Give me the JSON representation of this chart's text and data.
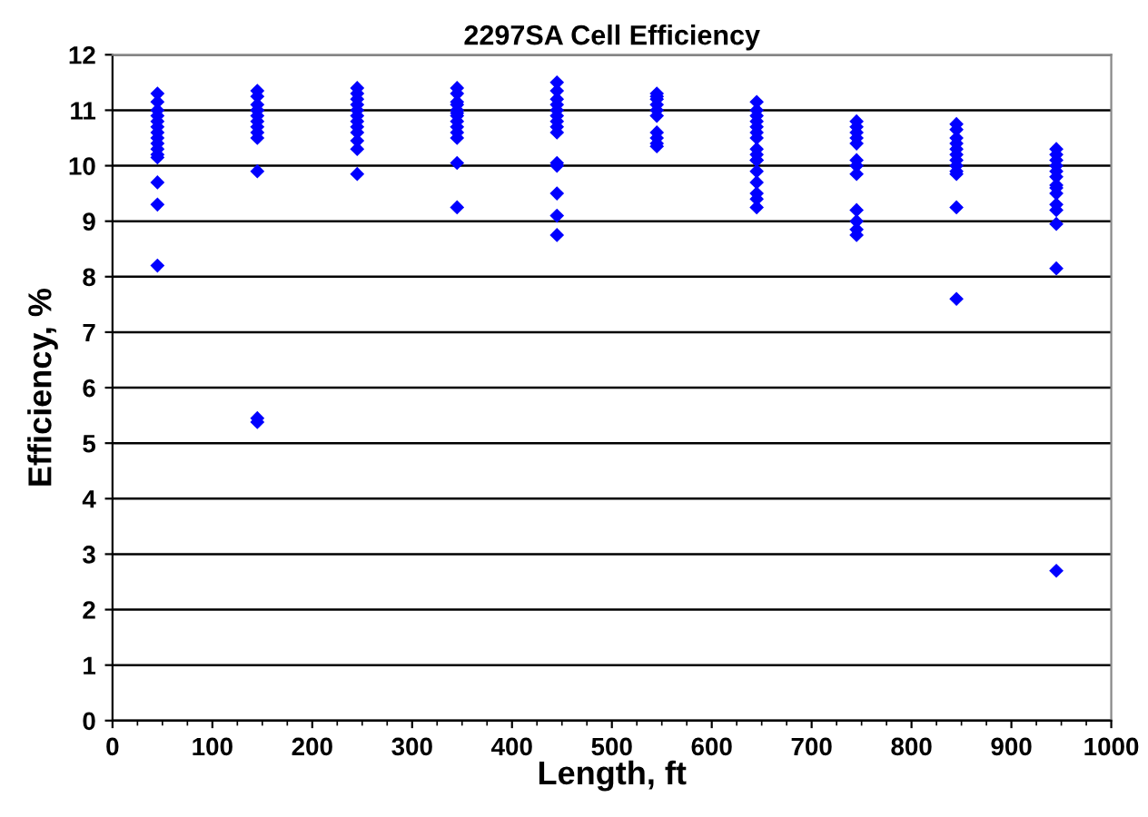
{
  "chart_data": {
    "type": "scatter",
    "title": "2297SA Cell Efficiency",
    "xlabel": "Length, ft",
    "ylabel": "Efficiency, %",
    "series": [
      {
        "color": "#0000ff",
        "x": [
          45,
          45,
          45,
          45,
          45,
          45,
          45,
          45,
          45,
          45,
          45,
          45,
          45,
          45,
          45,
          145,
          145,
          145,
          145,
          145,
          145,
          145,
          145,
          145,
          145,
          145,
          145,
          145,
          245,
          245,
          245,
          245,
          245,
          245,
          245,
          245,
          245,
          245,
          245,
          245,
          345,
          345,
          345,
          345,
          345,
          345,
          345,
          345,
          345,
          345,
          345,
          345,
          345,
          445,
          445,
          445,
          445,
          445,
          445,
          445,
          445,
          445,
          445,
          445,
          445,
          445,
          445,
          545,
          545,
          545,
          545,
          545,
          545,
          545,
          545,
          545,
          545,
          645,
          645,
          645,
          645,
          645,
          645,
          645,
          645,
          645,
          645,
          645,
          645,
          645,
          645,
          645,
          645,
          745,
          745,
          745,
          745,
          745,
          745,
          745,
          745,
          745,
          745,
          745,
          745,
          845,
          845,
          845,
          845,
          845,
          845,
          845,
          845,
          845,
          845,
          845,
          845,
          945,
          945,
          945,
          945,
          945,
          945,
          945,
          945,
          945,
          945,
          945,
          945,
          945,
          945
        ],
        "values": [
          11.3,
          11.15,
          11.0,
          10.9,
          10.8,
          10.7,
          10.6,
          10.5,
          10.4,
          10.3,
          10.15,
          10.2,
          9.7,
          9.3,
          8.2,
          11.35,
          11.25,
          11.1,
          11.0,
          10.9,
          10.8,
          10.7,
          10.6,
          10.5,
          9.9,
          5.45,
          5.38,
          11.0,
          11.4,
          11.3,
          11.1,
          11.0,
          10.9,
          10.8,
          10.7,
          10.6,
          10.45,
          10.3,
          9.85,
          11.2,
          11.4,
          11.3,
          11.15,
          11.0,
          10.9,
          10.8,
          10.7,
          10.6,
          10.5,
          10.05,
          9.25,
          11.1,
          10.95,
          11.5,
          11.35,
          11.2,
          11.1,
          11.0,
          10.9,
          10.8,
          10.7,
          10.6,
          10.05,
          10.0,
          9.5,
          9.1,
          8.75,
          11.25,
          11.3,
          11.2,
          11.1,
          11.0,
          10.9,
          10.6,
          10.5,
          10.4,
          10.35,
          10.1,
          11.15,
          11.0,
          10.9,
          10.8,
          10.7,
          10.6,
          10.5,
          10.3,
          10.1,
          9.9,
          9.7,
          9.5,
          9.4,
          9.25,
          10.2,
          10.8,
          10.7,
          10.6,
          10.5,
          10.4,
          10.1,
          10.0,
          9.85,
          9.2,
          9.0,
          8.85,
          8.75,
          10.75,
          10.65,
          10.5,
          10.4,
          10.3,
          10.2,
          10.1,
          10.0,
          9.9,
          9.85,
          9.25,
          7.6,
          10.3,
          10.2,
          10.1,
          10.0,
          9.9,
          9.8,
          9.6,
          9.5,
          9.3,
          9.2,
          8.95,
          8.15,
          2.7,
          9.65
        ]
      }
    ],
    "xlim": [
      0,
      1000
    ],
    "xticks": [
      0,
      100,
      200,
      300,
      400,
      500,
      600,
      700,
      800,
      900,
      1000
    ],
    "ylim": [
      0,
      12
    ],
    "yticks": [
      0,
      1,
      2,
      3,
      4,
      5,
      6,
      7,
      8,
      9,
      10,
      11,
      12
    ],
    "grid": "y",
    "marker": "diamond",
    "legend": false
  }
}
